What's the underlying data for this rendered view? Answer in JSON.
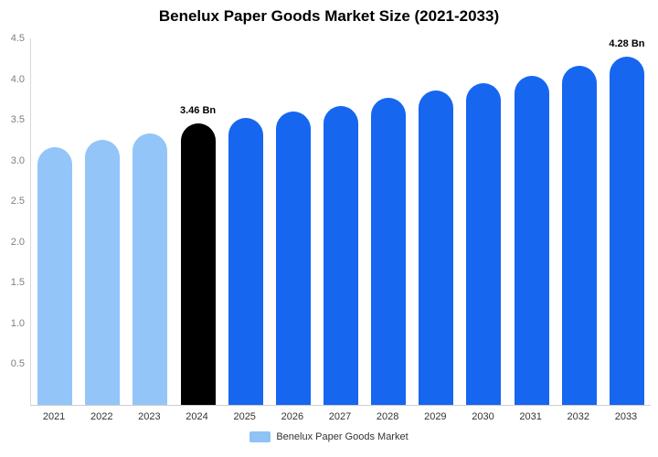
{
  "title": "Benelux Paper Goods Market Size (2021-2033)",
  "legend": {
    "label": "Benelux Paper Goods Market",
    "swatch_color": "#8FC2F5"
  },
  "chart_data": {
    "type": "bar",
    "title": "Benelux Paper Goods Market Size (2021-2033)",
    "categories": [
      "2021",
      "2022",
      "2023",
      "2024",
      "2025",
      "2026",
      "2027",
      "2028",
      "2029",
      "2030",
      "2031",
      "2032",
      "2033"
    ],
    "values": [
      3.17,
      3.25,
      3.33,
      3.46,
      3.52,
      3.6,
      3.67,
      3.77,
      3.86,
      3.95,
      4.04,
      4.16,
      4.28
    ],
    "bar_colors": [
      "#93C5F8",
      "#93C5F8",
      "#93C5F8",
      "#000000",
      "#1666F0",
      "#1666F0",
      "#1666F0",
      "#1666F0",
      "#1666F0",
      "#1666F0",
      "#1666F0",
      "#1666F0",
      "#1666F0"
    ],
    "data_labels": {
      "3": "3.46 Bn",
      "12": "4.28 Bn"
    },
    "xlabel": "",
    "ylabel": "",
    "ylim": [
      0,
      4.5
    ],
    "ytick_values": [
      4.5,
      4.0,
      3.5,
      3.0,
      2.5,
      2.0,
      1.5,
      1.0,
      0.5
    ],
    "ytick_labels": [
      "4.5",
      "4.0",
      "3.5",
      "3.0",
      "2.5",
      "2.0",
      "1.5",
      "1.0",
      "0.5"
    ],
    "grid": false,
    "legend_position": "bottom"
  }
}
